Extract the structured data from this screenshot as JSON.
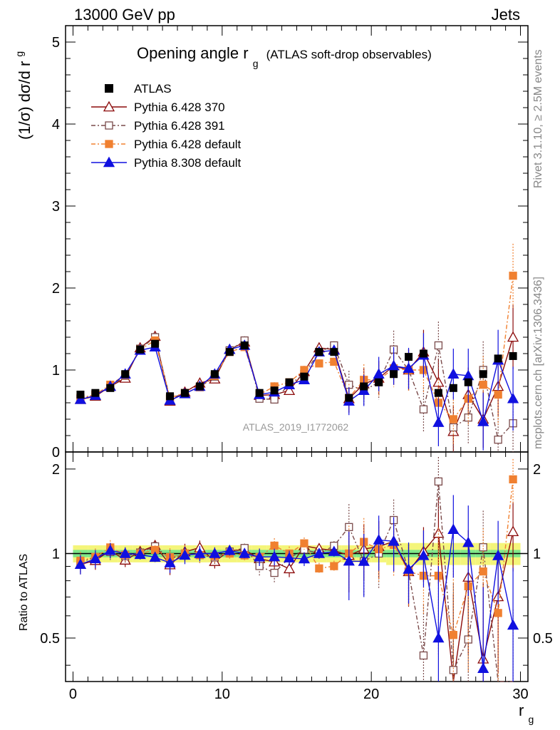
{
  "header": {
    "left": "13000 GeV pp",
    "right": "Jets"
  },
  "side": {
    "rivet": "Rivet 3.1.10, ≥ 2.5M events",
    "mcplots": "mcplots.cern.ch [arXiv:1306.3436]"
  },
  "chart_data": {
    "type": "scatter",
    "title_main": "Opening angle r",
    "title_sub": "g",
    "title_rest": "(ATLAS soft-drop observables)",
    "ylabel": "(1/σ) dσ/d r",
    "ylabel_sub": "g",
    "ratio_ylabel": "Ratio to ATLAS",
    "xlabel": "r",
    "xlabel_sub": "g",
    "analysis": "ATLAS_2019_I1772062",
    "xlim": [
      -0.5,
      30.5
    ],
    "ylim": [
      0,
      5.2
    ],
    "ratio_ylim": [
      0.35,
      2.3
    ],
    "x_ticks": [
      "0",
      "10",
      "20",
      "30"
    ],
    "y_ticks": [
      "0",
      "1",
      "2",
      "3",
      "4",
      "5"
    ],
    "ratio_ticks": [
      "0.5",
      "1",
      "2"
    ],
    "x": [
      0.5,
      1.5,
      2.5,
      3.5,
      4.5,
      5.5,
      6.5,
      7.5,
      8.5,
      9.5,
      10.5,
      11.5,
      12.5,
      13.5,
      14.5,
      15.5,
      16.5,
      17.5,
      18.5,
      19.5,
      20.5,
      21.5,
      22.5,
      23.5,
      24.5,
      25.5,
      26.5,
      27.5,
      28.5,
      29.5
    ],
    "data": {
      "name": "ATLAS",
      "values": [
        0.7,
        0.72,
        0.78,
        0.95,
        1.25,
        1.32,
        0.68,
        0.72,
        0.8,
        0.95,
        1.22,
        1.3,
        0.72,
        0.75,
        0.85,
        0.92,
        1.22,
        1.22,
        0.66,
        0.8,
        0.85,
        0.95,
        1.16,
        1.2,
        0.72,
        0.78,
        0.85,
        0.95,
        1.14,
        1.17
      ]
    },
    "series": [
      {
        "name": "Pythia 6.428 370",
        "color": "#8b0a0a",
        "values": [
          0.64,
          0.68,
          0.8,
          0.9,
          1.27,
          1.41,
          0.62,
          0.73,
          0.84,
          0.89,
          1.25,
          1.34,
          0.69,
          0.7,
          0.75,
          0.98,
          1.27,
          1.25,
          0.65,
          0.83,
          0.9,
          1.05,
          1.0,
          1.22,
          0.85,
          0.25,
          0.7,
          0.4,
          0.8,
          1.4
        ]
      },
      {
        "name": "Pythia 6.428 391",
        "color": "#7a4a4a",
        "values": [
          0.65,
          0.7,
          0.79,
          0.93,
          1.26,
          1.4,
          0.65,
          0.72,
          0.79,
          0.92,
          1.24,
          1.36,
          0.65,
          0.64,
          0.82,
          0.95,
          1.22,
          1.3,
          0.82,
          0.75,
          0.85,
          1.25,
          1.0,
          0.52,
          1.3,
          0.3,
          0.42,
          1.0,
          0.15,
          0.35
        ]
      },
      {
        "name": "Pythia 6.428 default",
        "color": "#f08030",
        "values": [
          0.66,
          0.7,
          0.82,
          0.94,
          1.25,
          1.36,
          0.66,
          0.72,
          0.79,
          0.93,
          1.22,
          1.28,
          0.7,
          0.8,
          0.85,
          1.0,
          1.08,
          1.1,
          0.66,
          0.88,
          0.88,
          1.02,
          1.0,
          1.0,
          0.6,
          0.4,
          0.65,
          0.82,
          0.7,
          2.15
        ]
      },
      {
        "name": "Pythia 8.308 default",
        "color": "#1010e0",
        "values": [
          0.64,
          0.69,
          0.8,
          0.95,
          1.24,
          1.28,
          0.63,
          0.71,
          0.8,
          0.95,
          1.25,
          1.3,
          0.7,
          0.73,
          0.82,
          0.88,
          1.22,
          1.24,
          0.62,
          0.75,
          0.95,
          1.05,
          1.02,
          1.18,
          0.36,
          0.95,
          0.93,
          0.37,
          1.12,
          0.65
        ]
      }
    ],
    "legend": {
      "placement": "top-left"
    }
  }
}
